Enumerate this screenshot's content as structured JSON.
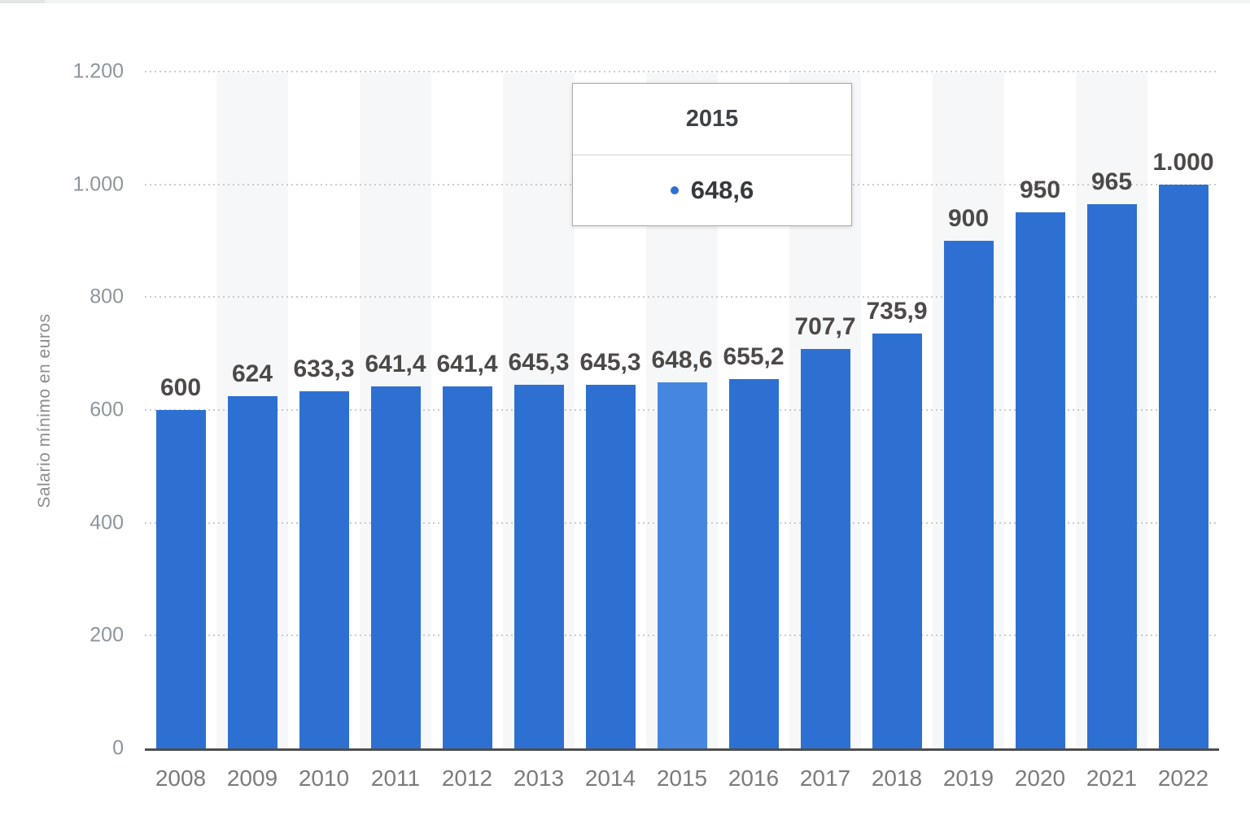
{
  "chart_data": {
    "type": "bar",
    "title": "",
    "xlabel": "",
    "ylabel": "Salario mínimo en euros",
    "categories": [
      "2008",
      "2009",
      "2010",
      "2011",
      "2012",
      "2013",
      "2014",
      "2015",
      "2016",
      "2017",
      "2018",
      "2019",
      "2020",
      "2021",
      "2022"
    ],
    "values": [
      600,
      624,
      633.3,
      641.4,
      641.4,
      645.3,
      645.3,
      648.6,
      655.2,
      707.7,
      735.9,
      900,
      950,
      965,
      1000
    ],
    "value_labels": [
      "600",
      "624",
      "633,3",
      "641,4",
      "641,4",
      "645,3",
      "645,3",
      "648,6",
      "655,2",
      "707,7",
      "735,9",
      "900",
      "950",
      "965",
      "1.000"
    ],
    "ylim": [
      0,
      1200
    ],
    "ytick_labels": [
      "1.200",
      "1.000",
      "800",
      "600",
      "400",
      "200",
      "0"
    ],
    "ytick_values": [
      1200,
      1000,
      800,
      600,
      400,
      200,
      0
    ],
    "grid": "horizontal-dotted",
    "legend_position": "none",
    "highlighted_category": "2015",
    "striped_categories": [
      "2009",
      "2011",
      "2013",
      "2015",
      "2017",
      "2019",
      "2021"
    ],
    "bar_color": "#2e70d2",
    "highlight_bar_color": "#4587e0",
    "stripe_color": "#f6f7f8",
    "axis_line_color": "#4e4e4e",
    "gridline_color": "#c8cbce"
  },
  "tooltip": {
    "title": "2015",
    "value": "648,6",
    "marker_color": "#2e70d2"
  }
}
